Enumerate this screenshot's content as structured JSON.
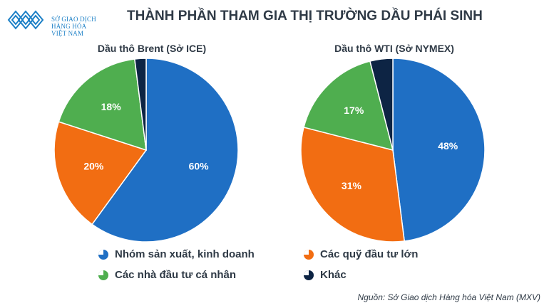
{
  "logo": {
    "line1": "SỞ GIAO DỊCH",
    "line2": "HÀNG HÓA",
    "line3": "VIỆT NAM"
  },
  "title": "THÀNH PHẦN THAM GIA THỊ TRƯỜNG DẦU PHÁI SINH",
  "colors": {
    "Nhóm sản xuất, kinh doanh": "#1f6fc4",
    "Các quỹ đầu tư lớn": "#f26d12",
    "Các nhà đầu tư cá nhân": "#4fae4f",
    "Khác": "#0d2444"
  },
  "chart_data": [
    {
      "type": "pie",
      "title": "Dầu thô Brent (Sở ICE)",
      "labels": [
        "Nhóm sản xuất, kinh doanh",
        "Các quỹ đầu tư lớn",
        "Các nhà đầu tư cá nhân",
        "Khác"
      ],
      "values": [
        60,
        20,
        18,
        2
      ],
      "data_labels": [
        "60%",
        "20%",
        "18%",
        ""
      ]
    },
    {
      "type": "pie",
      "title": "Dầu thô WTI (Sở NYMEX)",
      "labels": [
        "Nhóm sản xuất, kinh doanh",
        "Các quỹ đầu tư lớn",
        "Các nhà đầu tư cá nhân",
        "Khác"
      ],
      "values": [
        48,
        31,
        17,
        4
      ],
      "data_labels": [
        "48%",
        "31%",
        "17%",
        ""
      ]
    }
  ],
  "legend": [
    "Nhóm sản xuất, kinh doanh",
    "Các quỹ đầu tư lớn",
    "Các nhà đầu tư cá nhân",
    "Khác"
  ],
  "source": "Nguồn: Sở Giao dịch Hàng hóa Việt Nam (MXV)"
}
